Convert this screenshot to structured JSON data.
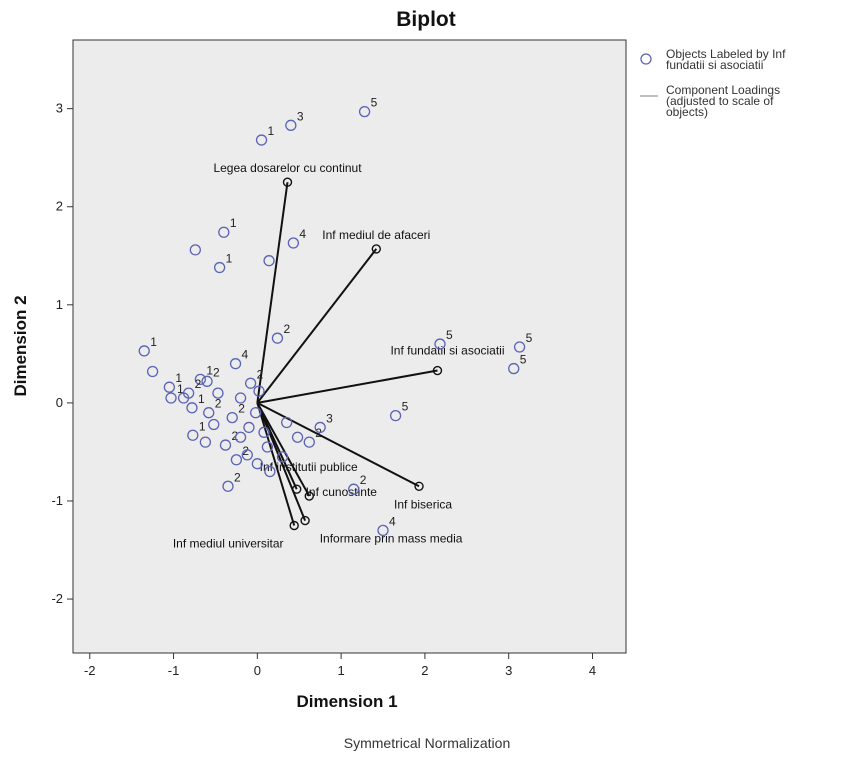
{
  "chart_data": {
    "type": "scatter",
    "title": "Biplot",
    "xlabel": "Dimension 1",
    "ylabel": "Dimension 2",
    "caption": "Symmetrical Normalization",
    "xlim": [
      -2.2,
      4.4
    ],
    "ylim": [
      -2.55,
      3.7
    ],
    "xticks": [
      -2,
      -1,
      0,
      1,
      2,
      3,
      4
    ],
    "yticks": [
      -2,
      -1,
      0,
      1,
      2,
      3
    ],
    "grid": false,
    "legend_position": "top-right",
    "legend": [
      {
        "kind": "marker",
        "lines": [
          "Objects Labeled by Inf",
          "fundatii si asociatii"
        ]
      },
      {
        "kind": "line",
        "lines": [
          "Component Loadings",
          "(adjusted to scale of",
          "objects)"
        ]
      }
    ],
    "colors": {
      "plot_background": "#ececec",
      "marker": "#5a63b5",
      "loading_line": "#111111",
      "legend_line": "#aaaaaa"
    },
    "loadings": [
      {
        "label": "Legea dosarelor cu continut",
        "x": 0.36,
        "y": 2.25
      },
      {
        "label": "Inf mediul de afaceri",
        "x": 1.42,
        "y": 1.57
      },
      {
        "label": "Inf fundatii si asociatii",
        "x": 2.15,
        "y": 0.33
      },
      {
        "label": "Inf biserica",
        "x": 1.93,
        "y": -0.85
      },
      {
        "label": "Inf cunostinte",
        "x": 0.62,
        "y": -0.95
      },
      {
        "label": "Inf institutii publice",
        "x": 0.47,
        "y": -0.88
      },
      {
        "label": "Inf mediul universitar",
        "x": 0.44,
        "y": -1.25
      },
      {
        "label": "Informare prin mass media",
        "x": 0.57,
        "y": -1.2
      }
    ],
    "points": [
      {
        "x": 1.28,
        "y": 2.97,
        "label": "5"
      },
      {
        "x": 0.4,
        "y": 2.83,
        "label": "3"
      },
      {
        "x": 0.05,
        "y": 2.68,
        "label": "1"
      },
      {
        "x": -0.4,
        "y": 1.74,
        "label": "1"
      },
      {
        "x": -0.74,
        "y": 1.56,
        "label": ""
      },
      {
        "x": -0.45,
        "y": 1.38,
        "label": "1"
      },
      {
        "x": 0.43,
        "y": 1.63,
        "label": "4"
      },
      {
        "x": 0.14,
        "y": 1.45,
        "label": ""
      },
      {
        "x": 0.24,
        "y": 0.66,
        "label": "2"
      },
      {
        "x": -1.35,
        "y": 0.53,
        "label": "1"
      },
      {
        "x": -1.25,
        "y": 0.32,
        "label": ""
      },
      {
        "x": -0.26,
        "y": 0.4,
        "label": "4"
      },
      {
        "x": -0.68,
        "y": 0.24,
        "label": "1"
      },
      {
        "x": -0.6,
        "y": 0.22,
        "label": "2"
      },
      {
        "x": -0.82,
        "y": 0.1,
        "label": "2"
      },
      {
        "x": -1.05,
        "y": 0.16,
        "label": "1"
      },
      {
        "x": -1.03,
        "y": 0.05,
        "label": "1"
      },
      {
        "x": -0.88,
        "y": 0.05,
        "label": ""
      },
      {
        "x": -0.78,
        "y": -0.05,
        "label": "1"
      },
      {
        "x": -0.58,
        "y": -0.1,
        "label": "2"
      },
      {
        "x": -0.47,
        "y": 0.1,
        "label": ""
      },
      {
        "x": -0.2,
        "y": 0.05,
        "label": ""
      },
      {
        "x": -0.3,
        "y": -0.15,
        "label": "2"
      },
      {
        "x": -0.52,
        "y": -0.22,
        "label": ""
      },
      {
        "x": -0.77,
        "y": -0.33,
        "label": "1"
      },
      {
        "x": -0.62,
        "y": -0.4,
        "label": ""
      },
      {
        "x": -0.38,
        "y": -0.43,
        "label": "2"
      },
      {
        "x": -0.2,
        "y": -0.35,
        "label": ""
      },
      {
        "x": -0.1,
        "y": -0.25,
        "label": ""
      },
      {
        "x": -0.02,
        "y": -0.1,
        "label": ""
      },
      {
        "x": 0.08,
        "y": -0.3,
        "label": ""
      },
      {
        "x": -0.25,
        "y": -0.58,
        "label": "2"
      },
      {
        "x": -0.12,
        "y": -0.53,
        "label": ""
      },
      {
        "x": 0.0,
        "y": -0.62,
        "label": ""
      },
      {
        "x": 0.12,
        "y": -0.45,
        "label": ""
      },
      {
        "x": -0.35,
        "y": -0.85,
        "label": "2"
      },
      {
        "x": 0.15,
        "y": -0.7,
        "label": ""
      },
      {
        "x": 0.3,
        "y": -0.55,
        "label": ""
      },
      {
        "x": 0.35,
        "y": -0.2,
        "label": ""
      },
      {
        "x": 0.48,
        "y": -0.35,
        "label": ""
      },
      {
        "x": 0.62,
        "y": -0.4,
        "label": "2"
      },
      {
        "x": 0.75,
        "y": -0.25,
        "label": "3"
      },
      {
        "x": -0.08,
        "y": 0.2,
        "label": "2"
      },
      {
        "x": 0.02,
        "y": 0.12,
        "label": ""
      },
      {
        "x": 2.18,
        "y": 0.6,
        "label": "5"
      },
      {
        "x": 3.13,
        "y": 0.57,
        "label": "5"
      },
      {
        "x": 3.06,
        "y": 0.35,
        "label": "5"
      },
      {
        "x": 1.65,
        "y": -0.13,
        "label": "5"
      },
      {
        "x": 1.5,
        "y": -1.3,
        "label": "4"
      },
      {
        "x": 1.15,
        "y": -0.88,
        "label": "2"
      }
    ]
  }
}
